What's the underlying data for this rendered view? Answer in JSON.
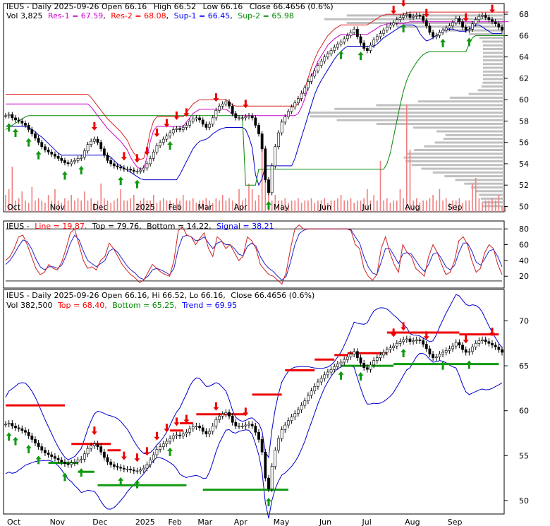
{
  "chart_data": [
    {
      "type": "candlestick",
      "ticker": "IEUS",
      "header": {
        "line1": [
          "IEUS - Daily 2025-09-26 Open 66.16",
          "High 66.52",
          "Low 66.16",
          "Close 66.4656 (0.6%)"
        ],
        "vol": "Vol 3,825",
        "res1": "Res-1 = 67.59",
        "res2": "Res-2 = 68.08",
        "sup1": "Sup-1 = 66.45",
        "sup2": "Sup-2 = 65.98"
      },
      "y_ticks": [
        50,
        52,
        54,
        56,
        58,
        60,
        62,
        64,
        66,
        68
      ],
      "ylim": [
        49.5,
        69.0
      ],
      "x_labels": [
        "Oct",
        "Nov",
        "Dec",
        "2025",
        "Feb",
        "Mar",
        "Apr",
        "May",
        "Jun",
        "Jul",
        "Aug",
        "Sep"
      ],
      "closes": [
        58.5,
        58.6,
        58.3,
        58.1,
        58.0,
        57.8,
        57.6,
        57.2,
        56.8,
        56.4,
        56.0,
        55.6,
        55.3,
        55.1,
        54.9,
        54.7,
        54.5,
        54.3,
        54.1,
        54.0,
        54.2,
        54.3,
        54.5,
        54.6,
        55.2,
        55.8,
        56.1,
        56.3,
        56.0,
        55.4,
        54.8,
        54.3,
        54.0,
        53.8,
        53.7,
        53.6,
        53.5,
        53.5,
        53.4,
        53.3,
        53.3,
        53.4,
        53.6,
        54.0,
        54.5,
        55.1,
        55.7,
        56.0,
        56.3,
        56.6,
        56.9,
        57.2,
        57.3,
        57.2,
        57.4,
        57.6,
        58.0,
        58.2,
        58.3,
        58.1,
        57.7,
        57.4,
        57.7,
        58.3,
        59.0,
        59.4,
        59.6,
        59.8,
        59.4,
        58.7,
        58.3,
        58.3,
        58.3,
        58.4,
        58.5,
        58.3,
        57.6,
        56.8,
        55.4,
        52.5,
        51.3,
        53.8,
        55.6,
        56.9,
        57.9,
        58.4,
        58.9,
        59.3,
        59.7,
        60.1,
        60.6,
        61.1,
        61.7,
        62.2,
        62.7,
        63.2,
        63.6,
        64.0,
        64.3,
        64.6,
        64.9,
        65.2,
        65.4,
        65.7,
        66.0,
        66.3,
        66.6,
        65.9,
        65.3,
        64.8,
        64.6,
        65.1,
        65.6,
        65.9,
        66.2,
        66.5,
        66.8,
        67.0,
        67.2,
        67.5,
        67.7,
        67.9,
        68.0,
        67.7,
        67.8,
        67.9,
        67.8,
        67.4,
        66.9,
        66.3,
        65.9,
        66.0,
        66.3,
        66.5,
        66.7,
        66.9,
        67.2,
        67.6,
        67.3,
        66.8,
        66.5,
        66.6,
        67.1,
        67.5,
        67.8,
        67.9,
        67.7,
        67.5,
        67.3,
        67.1,
        66.8,
        66.5
      ],
      "volume": [
        0.15,
        0.2,
        0.4,
        0.1,
        0.12,
        0.18,
        0.1,
        0.08,
        0.22,
        0.1,
        0.12,
        0.1,
        0.08,
        0.15,
        0.1,
        0.2,
        0.1,
        0.08,
        0.12,
        0.1,
        0.15,
        0.1,
        0.12,
        0.1,
        0.18,
        0.1,
        0.12,
        0.08,
        0.1,
        0.25,
        0.12,
        0.1,
        0.08,
        0.1,
        0.12,
        0.2,
        0.1,
        0.1,
        0.12,
        0.15,
        0.08,
        0.1,
        0.12,
        0.1,
        0.1,
        0.15,
        0.08,
        0.1,
        0.12,
        0.1,
        0.1,
        0.08,
        0.12,
        0.1,
        0.15,
        0.1,
        0.1,
        0.12,
        0.08,
        0.1,
        0.1,
        0.12,
        0.1,
        0.08,
        0.12,
        0.1,
        0.15,
        0.1,
        0.12,
        0.1,
        0.08,
        0.2,
        0.1,
        0.12,
        0.25,
        0.2,
        0.1,
        0.15,
        0.6,
        0.3,
        0.2,
        0.1,
        0.15,
        0.1,
        0.1,
        0.12,
        0.08,
        0.1,
        0.1,
        0.12,
        0.08,
        0.1,
        0.1,
        0.12,
        0.08,
        0.1,
        0.1,
        0.12,
        0.08,
        0.1,
        0.1,
        0.12,
        0.15,
        0.1,
        0.1,
        0.12,
        0.08,
        0.1,
        0.1,
        0.12,
        0.2,
        0.1,
        0.15,
        0.1,
        0.45,
        0.1,
        0.12,
        0.08,
        0.1,
        0.1,
        0.2,
        0.12,
        0.95,
        0.55,
        0.1,
        0.12,
        0.08,
        0.1,
        0.1,
        0.12,
        0.15,
        0.1,
        0.2,
        0.1,
        0.12,
        0.08,
        0.1,
        0.1,
        0.12,
        0.08,
        0.1,
        0.1,
        0.25,
        0.3,
        0.12,
        0.08,
        0.1,
        0.1,
        0.12,
        0.1,
        0.15,
        0.05,
        0.05
      ],
      "resistance_band": [
        60.5,
        60.5,
        60.5,
        60.5,
        60.5,
        60.5,
        60.5,
        60.5,
        60.5,
        60.5,
        60.5,
        60.5,
        60.5,
        60.5,
        60.5,
        60.5,
        60.5,
        60.5,
        60.5,
        60.5,
        60.5,
        60.5,
        60.5,
        60.5,
        60.5,
        60.5,
        60.2,
        59.8,
        59.4,
        59.0,
        58.6,
        58.2,
        57.9,
        57.6,
        57.3,
        57.0,
        56.6,
        56.2,
        55.5,
        55.0,
        54.6,
        54.4,
        54.5,
        55.5,
        57.0,
        58.0,
        58.4,
        58.4,
        58.4,
        58.4,
        58.4,
        58.4,
        58.4,
        58.4,
        58.4,
        58.8,
        59.2,
        59.6,
        59.8,
        60.0,
        60.0,
        60.0,
        60.0,
        60.0,
        60.0,
        60.0,
        60.0,
        60.0,
        59.8,
        59.5,
        59.4,
        59.4,
        59.4,
        59.4,
        59.4,
        59.4,
        59.4,
        59.4,
        59.4,
        59.4,
        59.4,
        59.4,
        59.4,
        59.4,
        59.4,
        59.4,
        59.4,
        59.4,
        59.4,
        59.6,
        60.2,
        61.0,
        62.0,
        63.0,
        63.8,
        64.5,
        65.0,
        65.5,
        66.0,
        66.3,
        66.6,
        66.8,
        67.0,
        67.0,
        67.0,
        67.0,
        67.0,
        67.0,
        67.0,
        67.0,
        67.0,
        67.2,
        67.4,
        67.6,
        67.8,
        67.9,
        68.0,
        68.0,
        68.0,
        68.0,
        68.0,
        68.0,
        68.1,
        68.2,
        68.2,
        68.2,
        68.2,
        68.2,
        68.2,
        68.2,
        68.2,
        68.2,
        68.2,
        68.2,
        68.2,
        68.2,
        68.2,
        68.2,
        68.2,
        68.2,
        68.2,
        68.2,
        68.2,
        68.2,
        68.2,
        68.2,
        68.2,
        68.2,
        68.2,
        68.2,
        68.2,
        68.2,
        68.2,
        68.2
      ],
      "ma_blue": [
        57.5,
        57.5,
        57.5,
        57.5,
        57.5,
        57.5,
        57.5,
        57.4,
        57.2,
        57.0,
        56.7,
        56.5,
        56.2,
        55.9,
        55.6,
        55.3,
        55.0,
        54.8,
        54.8,
        54.8,
        54.8,
        54.8,
        54.8,
        54.8,
        54.8,
        54.8,
        54.8,
        54.8,
        54.8,
        54.8,
        54.8,
        54.8,
        54.6,
        54.3,
        54.0,
        53.8,
        53.6,
        53.4,
        53.2,
        53.0,
        52.8,
        52.6,
        52.5,
        52.5,
        52.5,
        52.5,
        52.5,
        52.5,
        52.5,
        52.5,
        52.5,
        52.5,
        52.5,
        53.0,
        53.6,
        54.2,
        54.8,
        55.4,
        55.8,
        56.1,
        56.2,
        56.3,
        56.5,
        56.8,
        57.0,
        57.2,
        57.3,
        57.4,
        57.4,
        57.4,
        57.4,
        57.4,
        57.4,
        57.2,
        56.5,
        55.5,
        53.0,
        52.0,
        52.6,
        53.8,
        53.8,
        53.8,
        53.8,
        53.8,
        53.8,
        53.8,
        53.8,
        53.8,
        54.5,
        55.5,
        56.5,
        57.5,
        58.5,
        59.5,
        60.5,
        61.2,
        61.8,
        62.3,
        62.8,
        63.3,
        63.8,
        64.2,
        64.5,
        64.8,
        65.0,
        65.0,
        65.0,
        65.0,
        65.0,
        65.0,
        65.0,
        65.0,
        65.0,
        65.2,
        65.5,
        65.8,
        66.0,
        66.2,
        66.4,
        66.6,
        66.8,
        67.0,
        67.0,
        67.0,
        67.0,
        66.8,
        66.2,
        65.8,
        65.5,
        65.6,
        65.8,
        66.0,
        66.2,
        66.4,
        66.6,
        66.6,
        66.6,
        66.5,
        66.4,
        66.4,
        66.4,
        66.6,
        66.8,
        67.0,
        67.0,
        66.8,
        66.6,
        66.4,
        66.2,
        66.2,
        66.2,
        66.2
      ],
      "ma_green": [
        57.2,
        57.4,
        57.6,
        57.8,
        58.0,
        58.2,
        58.4,
        58.5,
        58.5,
        58.5,
        58.5,
        58.5,
        58.5,
        58.5,
        58.5,
        58.5,
        58.5,
        58.5,
        58.5,
        58.5,
        58.5,
        58.5,
        58.5,
        58.5,
        58.5,
        58.5,
        58.5,
        58.5,
        58.5,
        58.5,
        58.5,
        58.5,
        58.5,
        58.5,
        58.5,
        58.5,
        58.5,
        58.5,
        58.5,
        58.5,
        58.5,
        58.5,
        58.5,
        58.5,
        58.5,
        58.5,
        58.5,
        58.5,
        58.5,
        58.5,
        58.5,
        58.5,
        58.5,
        58.5,
        58.5,
        58.5,
        58.5,
        58.5,
        58.5,
        58.5,
        58.5,
        58.5,
        58.5,
        58.5,
        58.5,
        58.5,
        58.5,
        58.5,
        58.5,
        58.5,
        58.5,
        58.5,
        58.5,
        52.0,
        52.0,
        52.0,
        52.0,
        53.5,
        53.5,
        53.5,
        53.5,
        53.5,
        53.5,
        53.5,
        53.5,
        53.5,
        53.5,
        53.5,
        53.5,
        53.5,
        53.5,
        53.5,
        53.5,
        53.5,
        53.5,
        53.5,
        53.5,
        53.5,
        53.5,
        53.5,
        53.5,
        53.5,
        53.5,
        53.5,
        53.5,
        53.5,
        53.5,
        53.5,
        53.5,
        53.5,
        53.5,
        53.5,
        53.5,
        53.5,
        53.5,
        53.5,
        54.0,
        55.0,
        56.5,
        58.0,
        59.5,
        60.8,
        61.8,
        62.5,
        63.0,
        63.5,
        63.9,
        64.2,
        64.4,
        64.5,
        64.5,
        64.5,
        64.5,
        64.5,
        64.5,
        64.5,
        64.5,
        64.5,
        64.5,
        64.5,
        64.5,
        65.2,
        65.8,
        66.0,
        66.0,
        66.0,
        66.0,
        66.0,
        66.0,
        66.0,
        66.0,
        66.0,
        66.0
      ]
    },
    {
      "type": "line",
      "header": {
        "name": "IEUS -",
        "line": "Line = 19.87,",
        "top": "Top = 79.76,",
        "bottom": "Bottom = 14.22,",
        "signal": "Signal = 38.21"
      },
      "y_ticks": [
        20,
        40,
        60,
        80
      ],
      "ylim": [
        5,
        90
      ],
      "series": [
        {
          "values": [
            40,
            45,
            55,
            70,
            72,
            60,
            45,
            30,
            22,
            25,
            35,
            30,
            28,
            38,
            55,
            75,
            80,
            60,
            40,
            30,
            32,
            28,
            40,
            45,
            62,
            55,
            45,
            35,
            28,
            22,
            18,
            12,
            15,
            25,
            35,
            30,
            25,
            22,
            20,
            40,
            78,
            82,
            72,
            70,
            60,
            68,
            75,
            55,
            45,
            70,
            65,
            55,
            60,
            50,
            40,
            45,
            70,
            65,
            55,
            35,
            28,
            22,
            20,
            15,
            10,
            25,
            55,
            80,
            85,
            80,
            80,
            80,
            80,
            80,
            80,
            80,
            80,
            80,
            80,
            80,
            78,
            60,
            55,
            30,
            20,
            15,
            22,
            55,
            70,
            50,
            35,
            25,
            60,
            50,
            45,
            30,
            25,
            20,
            45,
            60,
            50,
            35,
            22,
            25,
            40,
            65,
            70,
            60,
            40,
            25,
            30,
            50,
            60,
            55,
            35,
            22
          ]
        },
        {
          "values": [
            35,
            40,
            48,
            58,
            66,
            64,
            55,
            42,
            32,
            28,
            32,
            32,
            30,
            34,
            46,
            62,
            72,
            66,
            52,
            40,
            36,
            32,
            36,
            40,
            52,
            55,
            50,
            42,
            34,
            28,
            24,
            18,
            16,
            20,
            28,
            30,
            28,
            25,
            22,
            30,
            55,
            70,
            72,
            70,
            65,
            66,
            70,
            62,
            55,
            62,
            64,
            60,
            60,
            55,
            48,
            46,
            58,
            62,
            58,
            45,
            36,
            30,
            26,
            20,
            15,
            20,
            38,
            60,
            74,
            78,
            80,
            80,
            80,
            80,
            80,
            80,
            80,
            80,
            80,
            80,
            79,
            70,
            62,
            45,
            32,
            24,
            22,
            38,
            55,
            55,
            46,
            36,
            48,
            50,
            48,
            40,
            32,
            26,
            35,
            48,
            50,
            42,
            32,
            28,
            34,
            50,
            62,
            62,
            52,
            38,
            34,
            42,
            52,
            54,
            45,
            32
          ]
        }
      ]
    },
    {
      "type": "candlestick",
      "header": {
        "line1": [
          "IEUS - Daily 2025-09-26 Open 66.16,",
          "Hi 66.52,",
          "Lo 66.16,",
          "Close 66.4656 (0.6%)"
        ],
        "vol": "Vol 382,500",
        "top": "Top = 68.40,",
        "bottom": "Bottom = 65.25,",
        "trend": "Trend = 69.95"
      },
      "y_ticks": [
        50,
        55,
        60,
        65,
        70
      ],
      "ylim": [
        48.5,
        73.5
      ]
    }
  ],
  "colors": {
    "res1": "#cc00cc",
    "res2": "#ff0000",
    "sup1": "#0000ff",
    "sup2": "#008800",
    "down_arrow": "#ff0000",
    "up_arrow": "#008800"
  }
}
